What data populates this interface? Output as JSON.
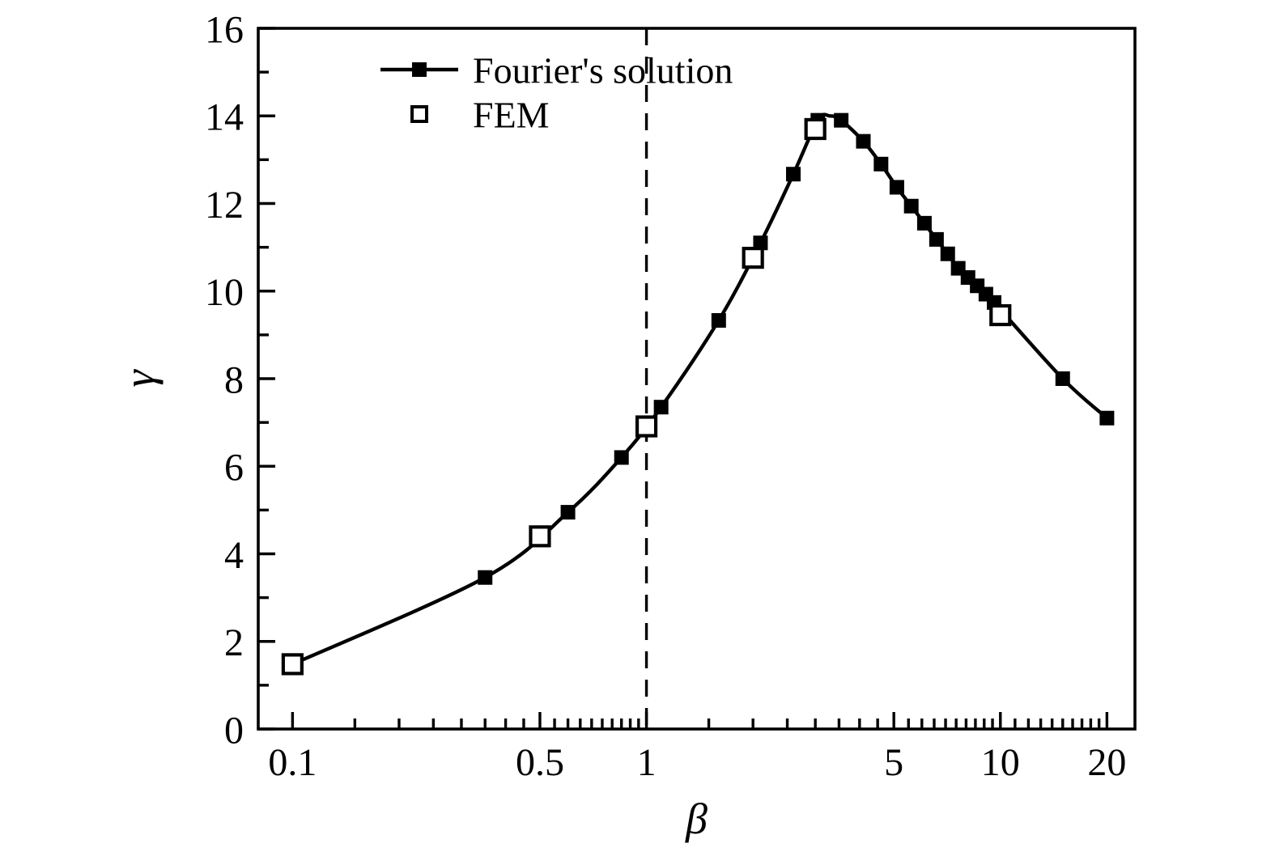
{
  "figure": {
    "background": "#ffffff",
    "ink_color": "#000000"
  },
  "chart_data": {
    "type": "line",
    "title": "",
    "xlabel": "β",
    "ylabel": "γ",
    "x_scale": "log",
    "y_scale": "linear",
    "xlim": [
      0.08,
      24
    ],
    "ylim": [
      0,
      16
    ],
    "grid": false,
    "legend_position": "top-left-inside",
    "x_ticks": {
      "major": [
        0.1,
        0.5,
        1,
        5,
        10,
        20
      ],
      "labels": [
        "0.1",
        "0.5",
        "1",
        "5",
        "10",
        "20"
      ],
      "minor": [
        0.15,
        0.2,
        0.25,
        0.3,
        0.35,
        0.4,
        0.45,
        0.55,
        0.6,
        0.65,
        0.7,
        0.75,
        0.8,
        0.85,
        0.9,
        0.95,
        1.5,
        2,
        2.5,
        3,
        3.5,
        4,
        4.5,
        5.5,
        6,
        6.5,
        7,
        7.5,
        8,
        8.5,
        9,
        9.5,
        11,
        12,
        13,
        14,
        15,
        16,
        17,
        18,
        19
      ]
    },
    "y_ticks": {
      "major": [
        0,
        2,
        4,
        6,
        8,
        10,
        12,
        14,
        16
      ],
      "labels": [
        "0",
        "2",
        "4",
        "6",
        "8",
        "10",
        "12",
        "14",
        "16"
      ],
      "minor": [
        1,
        3,
        5,
        7,
        9,
        11,
        13,
        15
      ]
    },
    "reference_line": {
      "type": "vertical-dashed",
      "x": 1
    },
    "series": [
      {
        "name": "Fourier's solution",
        "marker": "filled-square",
        "line": true,
        "points": [
          [
            0.35,
            3.46
          ],
          [
            0.6,
            4.95
          ],
          [
            0.85,
            6.2
          ],
          [
            1.1,
            7.35
          ],
          [
            1.6,
            9.33
          ],
          [
            2.1,
            11.1
          ],
          [
            2.6,
            12.67
          ],
          [
            3.05,
            13.9
          ],
          [
            3.55,
            13.9
          ],
          [
            4.1,
            13.42
          ],
          [
            4.6,
            12.9
          ],
          [
            5.1,
            12.37
          ],
          [
            5.6,
            11.94
          ],
          [
            6.1,
            11.55
          ],
          [
            6.6,
            11.18
          ],
          [
            7.1,
            10.85
          ],
          [
            7.6,
            10.52
          ],
          [
            8.1,
            10.31
          ],
          [
            8.6,
            10.12
          ],
          [
            9.1,
            9.93
          ],
          [
            9.6,
            9.74
          ],
          [
            15,
            8.0
          ],
          [
            20,
            7.1
          ]
        ],
        "curve_points": [
          [
            0.1,
            1.48
          ],
          [
            0.35,
            3.46
          ],
          [
            0.6,
            4.95
          ],
          [
            0.85,
            6.2
          ],
          [
            1.1,
            7.35
          ],
          [
            1.6,
            9.33
          ],
          [
            2.1,
            11.1
          ],
          [
            2.6,
            12.67
          ],
          [
            3.05,
            13.9
          ],
          [
            3.3,
            14.0
          ],
          [
            3.55,
            13.9
          ],
          [
            4.1,
            13.42
          ],
          [
            4.6,
            12.9
          ],
          [
            5.1,
            12.37
          ],
          [
            5.6,
            11.94
          ],
          [
            6.1,
            11.55
          ],
          [
            6.6,
            11.18
          ],
          [
            7.1,
            10.85
          ],
          [
            7.6,
            10.52
          ],
          [
            8.1,
            10.31
          ],
          [
            8.6,
            10.12
          ],
          [
            9.1,
            9.93
          ],
          [
            9.6,
            9.74
          ],
          [
            15,
            8.0
          ],
          [
            20,
            7.1
          ]
        ]
      },
      {
        "name": "FEM",
        "marker": "open-square",
        "line": false,
        "points": [
          [
            0.1,
            1.48
          ],
          [
            0.5,
            4.4
          ],
          [
            1.0,
            6.91
          ],
          [
            2.0,
            10.76
          ],
          [
            3.0,
            13.7
          ],
          [
            10,
            9.45
          ]
        ]
      }
    ]
  },
  "legend": {
    "items": [
      {
        "label": "Fourier's solution",
        "symbol": "line-with-filled-square"
      },
      {
        "label": "FEM",
        "symbol": "open-square"
      }
    ]
  }
}
